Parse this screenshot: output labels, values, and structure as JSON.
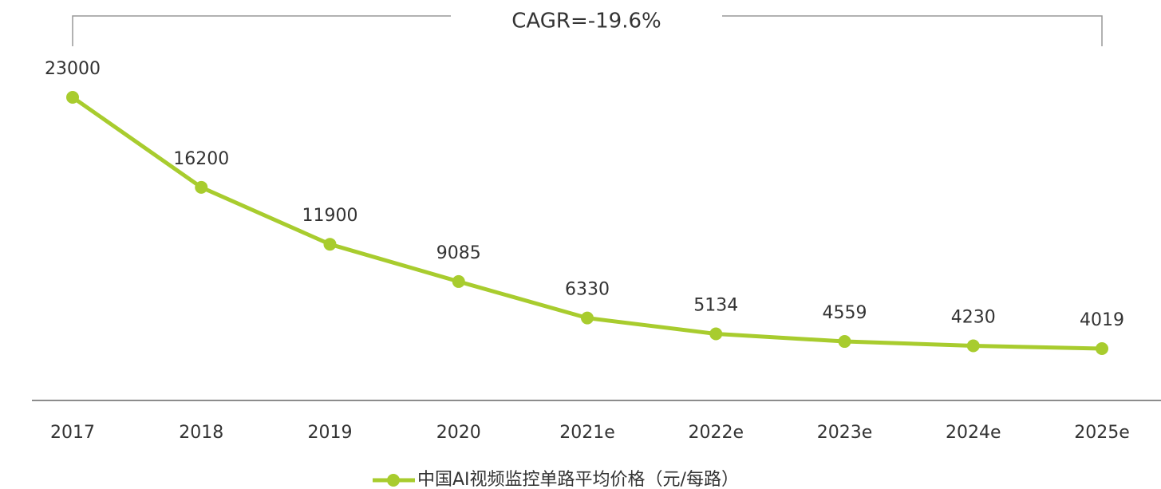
{
  "chart_data": {
    "type": "line",
    "annotation": "CAGR=-19.6%",
    "categories": [
      "2017",
      "2018",
      "2019",
      "2020",
      "2021e",
      "2022e",
      "2023e",
      "2024e",
      "2025e"
    ],
    "series": [
      {
        "name": "中国AI视频监控单路平均价格（元/每路）",
        "color": "#a8cc2e",
        "values": [
          23000,
          16200,
          11900,
          9085,
          6330,
          5134,
          4559,
          4230,
          4019
        ]
      }
    ],
    "ylim": [
      0,
      28000
    ],
    "grid": false,
    "legend": "bottom"
  }
}
